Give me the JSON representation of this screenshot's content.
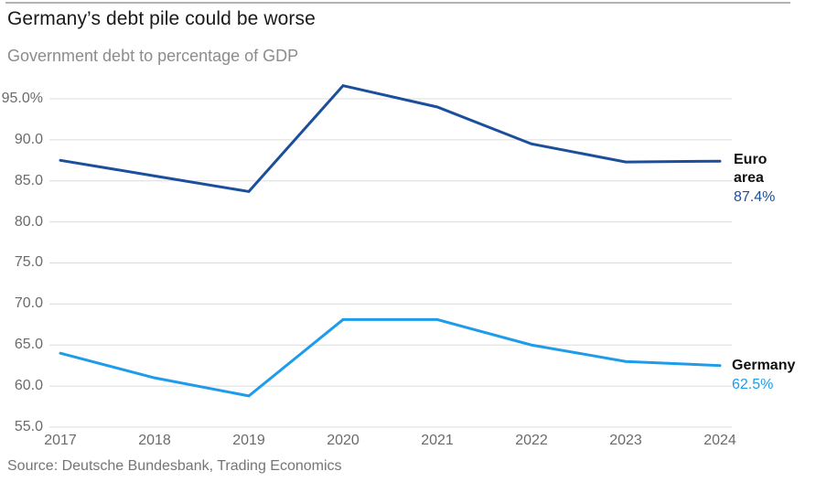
{
  "header": {
    "title": "Germany’s debt pile could be worse",
    "subtitle": "Government debt to percentage of GDP"
  },
  "source": "Source: Deutsche Bundesbank, Trading Economics",
  "chart_data": {
    "type": "line",
    "title": "Germany’s debt pile could be worse",
    "subtitle": "Government debt to percentage of GDP",
    "x": [
      2017,
      2018,
      2019,
      2020,
      2021,
      2022,
      2023,
      2024
    ],
    "xtick_labels": [
      "2017",
      "2018",
      "2019",
      "2020",
      "2021",
      "2022",
      "2023",
      "2024"
    ],
    "ytick_labels": [
      "95.0%",
      "90.0",
      "85.0",
      "80.0",
      "75.0",
      "70.0",
      "65.0",
      "60.0",
      "55.0"
    ],
    "ytick_values": [
      95,
      90,
      85,
      80,
      75,
      70,
      65,
      60,
      55
    ],
    "ylim": [
      55,
      95
    ],
    "grid": true,
    "legend_position": "right-end-labels",
    "series": [
      {
        "name": "Euro area",
        "color": "#1b4f9c",
        "values": [
          87.5,
          85.6,
          83.7,
          96.6,
          94.0,
          89.5,
          87.3,
          87.4
        ],
        "end_label": "Euro area",
        "end_value_label": "87.4%"
      },
      {
        "name": "Germany",
        "color": "#1e9cea",
        "values": [
          64.0,
          61.0,
          58.8,
          68.1,
          68.1,
          65.0,
          63.0,
          62.5
        ],
        "end_label": "Germany",
        "end_value_label": "62.5%"
      }
    ]
  }
}
